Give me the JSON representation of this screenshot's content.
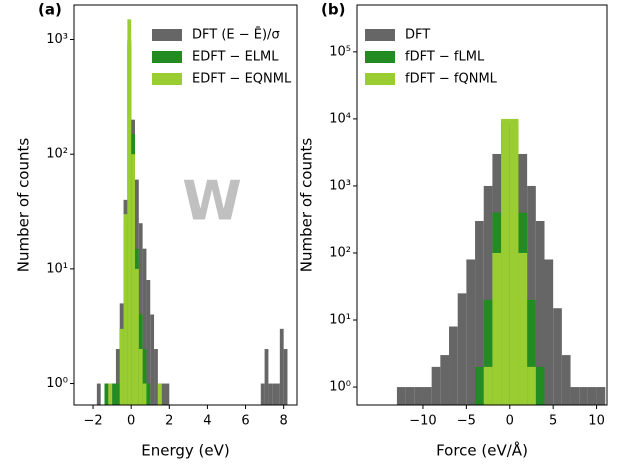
{
  "chart_data": [
    {
      "type": "histogram",
      "panel_label": "(a)",
      "xlabel": "Energy (eV)",
      "ylabel": "Number of counts",
      "annotation": "W",
      "log_y": true,
      "legend": "upper right",
      "xlim": [
        -3,
        8.7
      ],
      "ylim": [
        0.65,
        2000
      ],
      "xticks": [
        {
          "value": -2,
          "label": "−2"
        },
        0,
        2,
        4,
        6,
        8
      ],
      "yticks": [
        {
          "value": 1,
          "label": "10⁰"
        },
        {
          "value": 10,
          "label": "10¹"
        },
        {
          "value": 100,
          "label": "10²"
        },
        {
          "value": 1000,
          "label": "10³"
        }
      ],
      "bins": [
        -2.0,
        -1.8,
        -1.6,
        -1.4,
        -1.2,
        -1.0,
        -0.8,
        -0.6,
        -0.4,
        -0.2,
        0.0,
        0.2,
        0.4,
        0.6,
        0.8,
        1.0,
        1.2,
        1.4,
        1.6,
        1.8,
        2.0,
        2.2,
        2.4,
        2.6,
        2.8,
        3.0,
        3.2,
        3.4,
        3.6,
        3.8,
        4.0,
        4.2,
        4.4,
        4.6,
        4.8,
        5.0,
        5.2,
        5.4,
        5.6,
        5.8,
        6.0,
        6.2,
        6.4,
        6.6,
        6.8,
        7.0,
        7.2,
        7.4,
        7.6,
        7.8,
        8.0,
        8.2
      ],
      "series": [
        {
          "name": "DFT (E − Ē)/σ",
          "color": "#666666",
          "values": [
            0,
            1,
            0,
            1,
            1,
            1,
            2,
            5,
            40,
            1000,
            200,
            60,
            25,
            15,
            8,
            4,
            2,
            1,
            1,
            1,
            0,
            0,
            0,
            0,
            0,
            0,
            0,
            0,
            0,
            0,
            0,
            0,
            0,
            0,
            0,
            0,
            0,
            0,
            0,
            0,
            0,
            0,
            0,
            0,
            1,
            2,
            1,
            1,
            1,
            3,
            2
          ]
        },
        {
          "name": "EDFT − ELML",
          "color": "#228b22",
          "values": [
            0,
            0,
            0,
            1,
            0,
            1,
            1,
            3,
            25,
            900,
            150,
            15,
            4,
            2,
            1,
            0,
            0,
            0,
            0,
            0,
            0,
            0,
            0,
            0,
            0,
            0,
            0,
            0,
            0,
            0,
            0,
            0,
            0,
            0,
            0,
            0,
            0,
            0,
            0,
            0,
            0,
            0,
            0,
            0,
            0,
            0,
            0,
            0,
            0,
            0,
            0
          ]
        },
        {
          "name": "EDFT − EQNML",
          "color": "#9acd32",
          "values": [
            0,
            0,
            0,
            0,
            1,
            0,
            0,
            3,
            30,
            1500,
            100,
            10,
            2,
            1,
            0,
            0,
            0,
            1,
            0,
            0,
            0,
            0,
            0,
            0,
            0,
            0,
            0,
            0,
            0,
            0,
            0,
            0,
            0,
            0,
            0,
            0,
            0,
            0,
            0,
            0,
            0,
            0,
            0,
            0,
            0,
            0,
            0,
            0,
            0,
            0,
            0
          ]
        }
      ]
    },
    {
      "type": "histogram",
      "panel_label": "(b)",
      "xlabel": "Force (eV/Å)",
      "ylabel": "Number of counts",
      "log_y": true,
      "legend": "upper left",
      "xlim": [
        -17.6,
        11.2
      ],
      "ylim": [
        0.54,
        500000
      ],
      "xticks": [
        {
          "value": -10,
          "label": "−10"
        },
        {
          "value": -5,
          "label": "−5"
        },
        0,
        5,
        10
      ],
      "yticks": [
        {
          "value": 1,
          "label": "10⁰"
        },
        {
          "value": 10,
          "label": "10¹"
        },
        {
          "value": 100,
          "label": "10²"
        },
        {
          "value": 1000,
          "label": "10³"
        },
        {
          "value": 10000,
          "label": "10⁴"
        },
        {
          "value": 100000,
          "label": "10⁵"
        }
      ],
      "bins": [
        -13,
        -12,
        -11,
        -10,
        -9,
        -8,
        -7,
        -6,
        -5,
        -4,
        -3,
        -2,
        -1,
        0,
        1,
        2,
        3,
        4,
        5,
        6,
        7,
        8,
        9,
        10,
        11
      ],
      "series": [
        {
          "name": "DFT",
          "color": "#666666",
          "values": [
            1,
            1,
            1,
            1,
            2,
            3,
            8,
            25,
            80,
            300,
            1000,
            3000,
            8000,
            8000,
            3000,
            1000,
            300,
            80,
            15,
            3,
            1,
            1,
            1,
            1
          ]
        },
        {
          "name": "fDFT − fLML",
          "color": "#228b22",
          "values": [
            0,
            0,
            0,
            0,
            0,
            0,
            0,
            0,
            0,
            2,
            20,
            400,
            9000,
            9000,
            400,
            20,
            2,
            0,
            0,
            0,
            0,
            0,
            0,
            0
          ]
        },
        {
          "name": "fDFT − fQNML",
          "color": "#9acd32",
          "values": [
            0,
            0,
            0,
            0,
            0,
            0,
            0,
            0,
            0,
            0,
            2,
            100,
            10000,
            10000,
            100,
            2,
            0,
            0,
            0,
            0,
            0,
            0,
            0,
            0
          ]
        }
      ]
    }
  ]
}
